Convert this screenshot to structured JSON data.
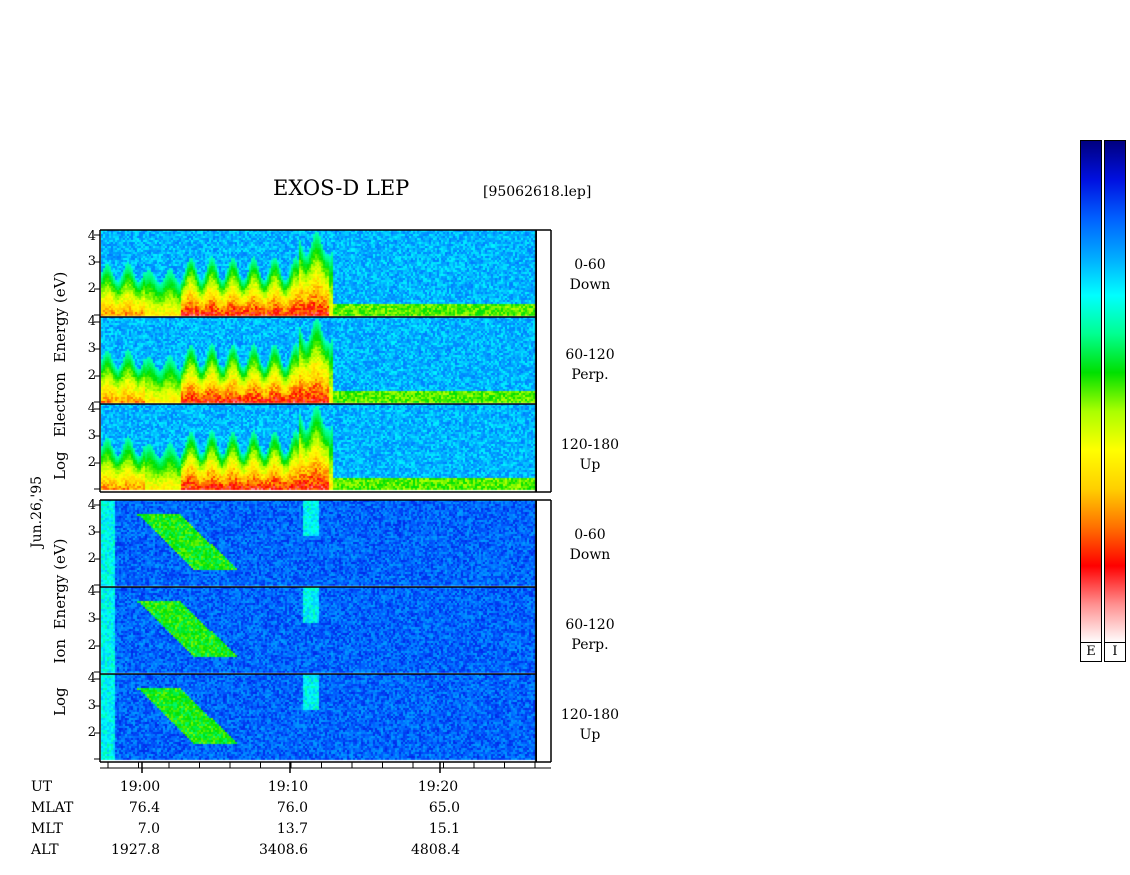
{
  "title": "EXOS-D LEP",
  "file_label": "[95062618.lep]",
  "date_label": "Jun.26,'95",
  "electron_axis_label": [
    "Log",
    "Electron",
    "Energy",
    "(eV)"
  ],
  "ion_axis_label": [
    "Log",
    "Ion",
    "Energy",
    "(eV)"
  ],
  "colorbars": {
    "electron_label": "E",
    "ion_label": "I",
    "colors": [
      "#ffffff",
      "#ff9090",
      "#ff0000",
      "#ff7000",
      "#ffd000",
      "#ffff00",
      "#aaff00",
      "#00e000",
      "#00ff90",
      "#00ffff",
      "#00aaff",
      "#0060ff",
      "#0010e0",
      "#000080"
    ]
  },
  "chart_data": [
    {
      "type": "heatmap",
      "species": "electron",
      "ylim": [
        1,
        4
      ],
      "yticks": [
        "4",
        "3",
        "2"
      ],
      "panels": [
        {
          "pitch": "0-60",
          "dir": "Down"
        },
        {
          "pitch": "60-120",
          "dir": "Perp."
        },
        {
          "pitch": "120-180",
          "dir": "Up"
        }
      ]
    },
    {
      "type": "heatmap",
      "species": "ion",
      "ylim": [
        1,
        4
      ],
      "yticks": [
        "4",
        "3",
        "2"
      ],
      "panels": [
        {
          "pitch": "0-60",
          "dir": "Down"
        },
        {
          "pitch": "60-120",
          "dir": "Perp."
        },
        {
          "pitch": "120-180",
          "dir": "Up"
        }
      ]
    }
  ],
  "ephemeris": {
    "row_labels": [
      "UT",
      "MLAT",
      "MLT",
      "ALT"
    ],
    "columns": [
      {
        "ut": "19:00",
        "mlat": "76.4",
        "mlt": "7.0",
        "alt": "1927.8"
      },
      {
        "ut": "19:10",
        "mlat": "76.0",
        "mlt": "13.7",
        "alt": "3408.6"
      },
      {
        "ut": "19:20",
        "mlat": "65.0",
        "mlt": "15.1",
        "alt": "4808.4"
      }
    ]
  }
}
